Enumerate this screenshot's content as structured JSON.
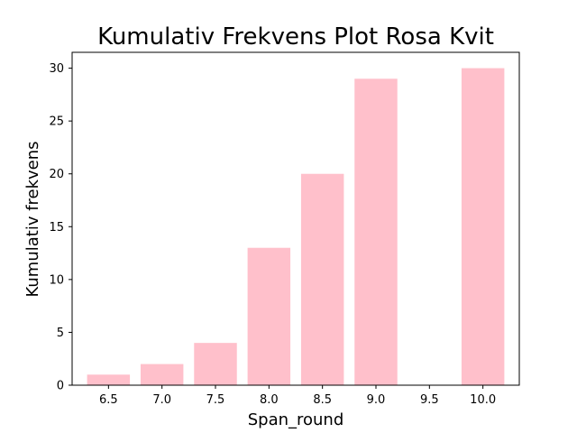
{
  "chart_data": {
    "type": "bar",
    "title": "Kumulativ Frekvens Plot Rosa Kvit",
    "xlabel": "Span_round",
    "ylabel": "Kumulativ frekvens",
    "x": [
      6.5,
      7.0,
      7.5,
      8.0,
      8.5,
      9.0,
      10.0
    ],
    "values": [
      1,
      2,
      4,
      13,
      20,
      29,
      30
    ],
    "xticks": [
      "6.5",
      "7.0",
      "7.5",
      "8.0",
      "8.5",
      "9.0",
      "9.5",
      "10.0"
    ],
    "xtick_values": [
      6.5,
      7.0,
      7.5,
      8.0,
      8.5,
      9.0,
      9.5,
      10.0
    ],
    "yticks": [
      "0",
      "5",
      "10",
      "15",
      "20",
      "25",
      "30"
    ],
    "ytick_values": [
      0,
      5,
      10,
      15,
      20,
      25,
      30
    ],
    "xlim": [
      6.16,
      10.34
    ],
    "ylim": [
      0,
      31.5
    ],
    "bar_width": 0.4,
    "bar_color": "#ffc0cb",
    "grid": false,
    "legend": "none"
  }
}
